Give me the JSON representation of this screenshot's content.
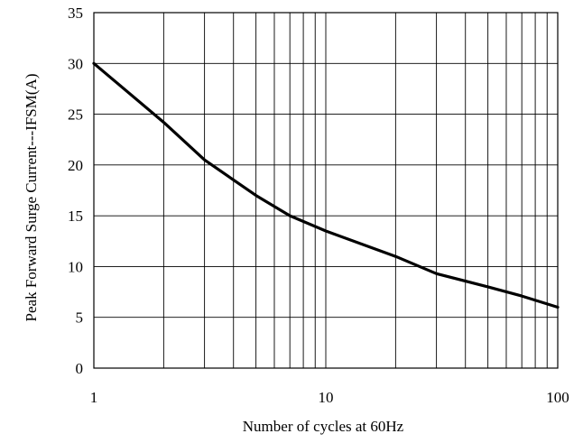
{
  "chart_data": {
    "type": "line",
    "xscale": "log",
    "xlabel": "Number of cycles at 60Hz",
    "ylabel": "Peak Forward Surge Current---IFSM(A)",
    "xlim": [
      1,
      100
    ],
    "ylim": [
      0,
      35
    ],
    "grid": true,
    "x_tick_labels": [
      "1",
      "10",
      "100"
    ],
    "x_ticks": [
      1,
      10,
      100
    ],
    "y_ticks": [
      0,
      5,
      10,
      15,
      20,
      25,
      30,
      35
    ],
    "y_tick_labels": [
      "0",
      "5",
      "10",
      "15",
      "20",
      "25",
      "30",
      "35"
    ],
    "series": [
      {
        "x": [
          1,
          2,
          3,
          5,
          7,
          10,
          20,
          30,
          50,
          70,
          100
        ],
        "y": [
          30,
          24.2,
          20.5,
          17,
          15,
          13.5,
          11,
          9.3,
          8,
          7.1,
          6
        ]
      }
    ]
  }
}
